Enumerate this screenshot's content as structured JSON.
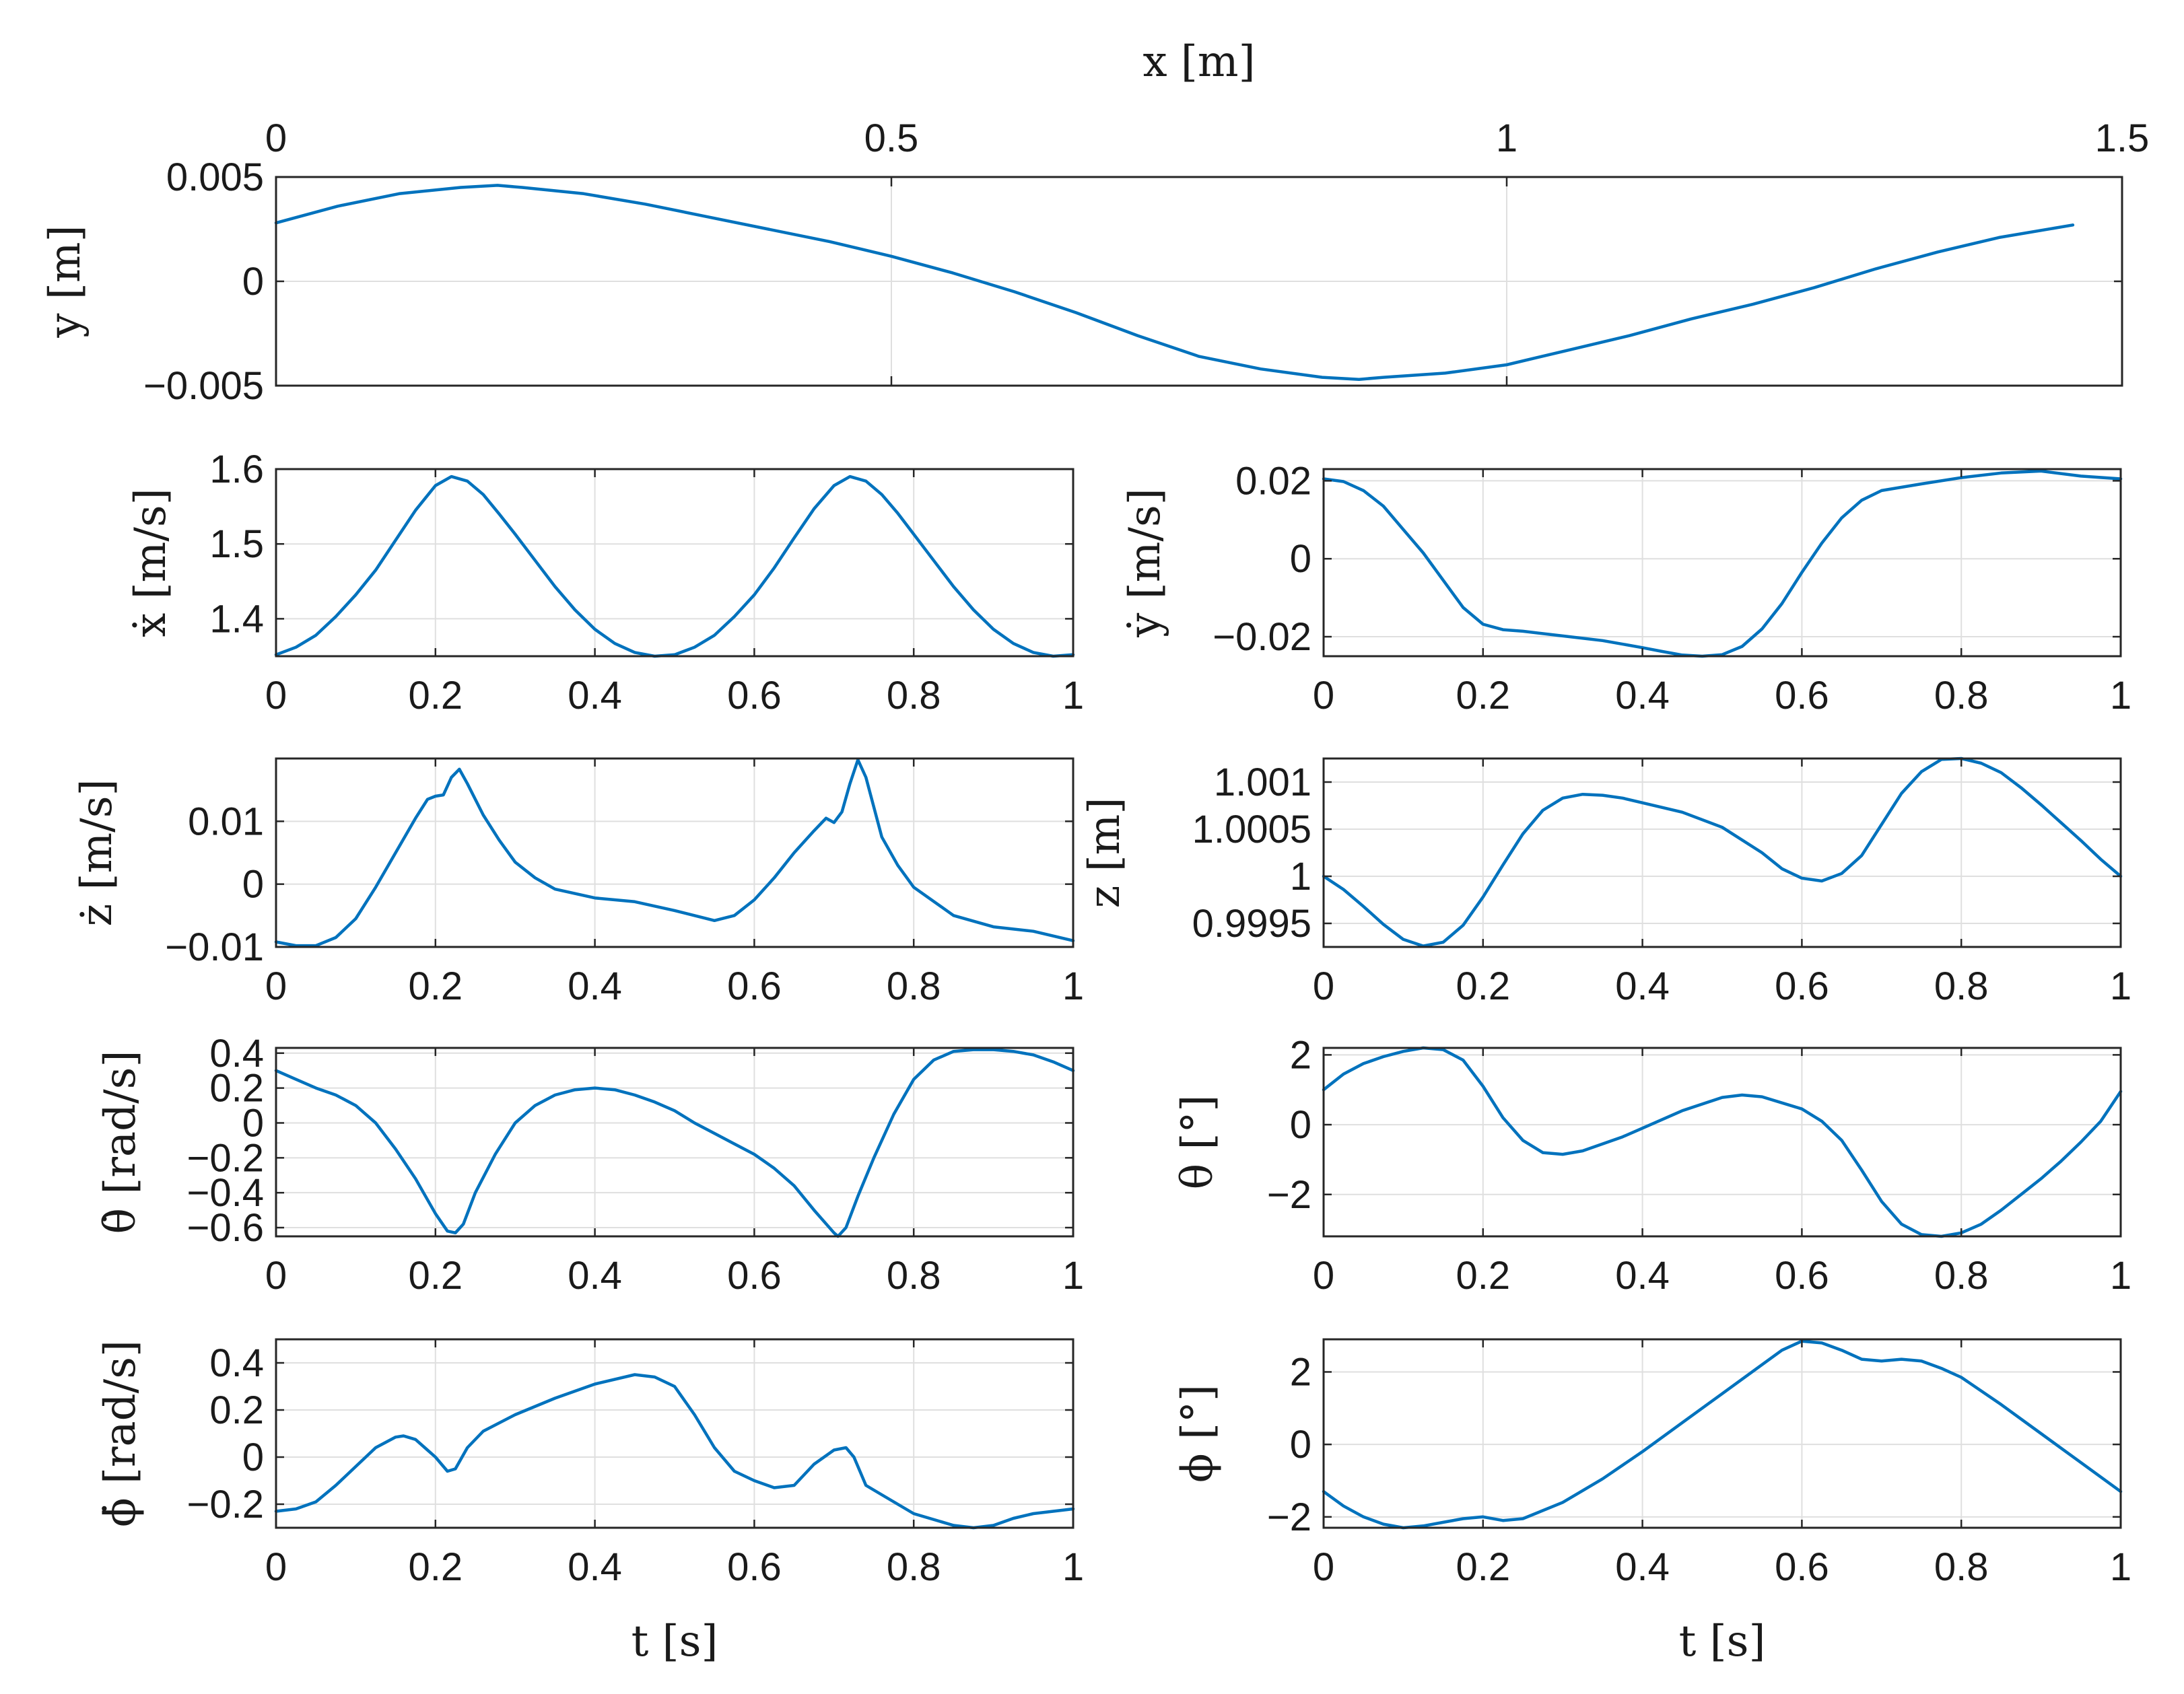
{
  "chart_data": [
    {
      "type": "line",
      "xlabel": "x [m]",
      "ylabel": "y [m]",
      "xlim": [
        0,
        1.5
      ],
      "ylim": [
        -0.005,
        0.005
      ],
      "xticks": [
        0,
        0.5,
        1,
        1.5
      ],
      "xtick_labels": [
        "0",
        "0.5",
        "1",
        "1.5"
      ],
      "yticks": [
        -0.005,
        0,
        0.005
      ],
      "ytick_labels": [
        "−0.005",
        "0",
        "0.005"
      ],
      "x_axis_position": "top",
      "grid": true,
      "x": [
        0,
        0.05,
        0.1,
        0.15,
        0.18,
        0.2,
        0.25,
        0.3,
        0.35,
        0.4,
        0.45,
        0.5,
        0.55,
        0.6,
        0.65,
        0.7,
        0.75,
        0.8,
        0.85,
        0.88,
        0.9,
        0.95,
        1.0,
        1.05,
        1.1,
        1.15,
        1.2,
        1.25,
        1.3,
        1.35,
        1.4,
        1.46
      ],
      "y": [
        0.0028,
        0.0036,
        0.0042,
        0.0045,
        0.0046,
        0.0045,
        0.0042,
        0.0037,
        0.0031,
        0.0025,
        0.0019,
        0.0012,
        0.0004,
        -0.0005,
        -0.0015,
        -0.0026,
        -0.0036,
        -0.0042,
        -0.0046,
        -0.0047,
        -0.0046,
        -0.0044,
        -0.004,
        -0.0033,
        -0.0026,
        -0.0018,
        -0.0011,
        -0.0003,
        0.0006,
        0.0014,
        0.0021,
        0.0027
      ]
    },
    {
      "type": "line",
      "xlabel": "",
      "ylabel": "ẋ [m/s]",
      "xlim": [
        0,
        1
      ],
      "ylim": [
        1.35,
        1.6
      ],
      "xticks": [
        0,
        0.2,
        0.4,
        0.6,
        0.8,
        1
      ],
      "xtick_labels": [
        "0",
        "0.2",
        "0.4",
        "0.6",
        "0.8",
        "1"
      ],
      "yticks": [
        1.4,
        1.5,
        1.6
      ],
      "ytick_labels": [
        "1.4",
        "1.5",
        "1.6"
      ],
      "grid": true,
      "x": [
        0,
        0.025,
        0.05,
        0.075,
        0.1,
        0.125,
        0.15,
        0.175,
        0.2,
        0.22,
        0.24,
        0.26,
        0.28,
        0.3,
        0.325,
        0.35,
        0.375,
        0.4,
        0.425,
        0.45,
        0.475,
        0.5,
        0.525,
        0.55,
        0.575,
        0.6,
        0.625,
        0.65,
        0.675,
        0.7,
        0.72,
        0.74,
        0.76,
        0.78,
        0.8,
        0.825,
        0.85,
        0.875,
        0.9,
        0.925,
        0.95,
        0.975,
        1.0
      ],
      "y": [
        1.352,
        1.362,
        1.378,
        1.403,
        1.432,
        1.465,
        1.505,
        1.545,
        1.578,
        1.59,
        1.584,
        1.566,
        1.54,
        1.513,
        1.478,
        1.443,
        1.412,
        1.386,
        1.367,
        1.355,
        1.35,
        1.352,
        1.362,
        1.378,
        1.403,
        1.432,
        1.468,
        1.508,
        1.547,
        1.578,
        1.59,
        1.584,
        1.566,
        1.541,
        1.513,
        1.478,
        1.443,
        1.412,
        1.386,
        1.367,
        1.355,
        1.35,
        1.352
      ]
    },
    {
      "type": "line",
      "xlabel": "",
      "ylabel": "ẏ [m/s]",
      "xlim": [
        0,
        1
      ],
      "ylim": [
        -0.025,
        0.023
      ],
      "xticks": [
        0,
        0.2,
        0.4,
        0.6,
        0.8,
        1
      ],
      "xtick_labels": [
        "0",
        "0.2",
        "0.4",
        "0.6",
        "0.8",
        "1"
      ],
      "yticks": [
        -0.02,
        0,
        0.02
      ],
      "ytick_labels": [
        "−0.02",
        "0",
        "0.02"
      ],
      "grid": true,
      "x": [
        0,
        0.025,
        0.05,
        0.075,
        0.1,
        0.125,
        0.15,
        0.175,
        0.2,
        0.225,
        0.25,
        0.3,
        0.35,
        0.4,
        0.425,
        0.45,
        0.475,
        0.5,
        0.525,
        0.55,
        0.575,
        0.6,
        0.625,
        0.65,
        0.675,
        0.7,
        0.75,
        0.8,
        0.85,
        0.9,
        0.95,
        1.0
      ],
      "y": [
        0.0205,
        0.0198,
        0.0175,
        0.0135,
        0.0075,
        0.0015,
        -0.0055,
        -0.0125,
        -0.0168,
        -0.0182,
        -0.0186,
        -0.0198,
        -0.021,
        -0.0228,
        -0.0238,
        -0.0247,
        -0.025,
        -0.0246,
        -0.0225,
        -0.018,
        -0.0115,
        -0.0035,
        0.004,
        0.0105,
        0.015,
        0.0175,
        0.0192,
        0.0208,
        0.022,
        0.0225,
        0.0212,
        0.0205
      ]
    },
    {
      "type": "line",
      "xlabel": "",
      "ylabel": "ż [m/s]",
      "xlim": [
        0,
        1
      ],
      "ylim": [
        -0.01,
        0.02
      ],
      "xticks": [
        0,
        0.2,
        0.4,
        0.6,
        0.8,
        1
      ],
      "xtick_labels": [
        "0",
        "0.2",
        "0.4",
        "0.6",
        "0.8",
        "1"
      ],
      "yticks": [
        -0.01,
        0,
        0.01
      ],
      "ytick_labels": [
        "−0.01",
        "0",
        "0.01"
      ],
      "grid": true,
      "x": [
        0,
        0.025,
        0.05,
        0.075,
        0.1,
        0.125,
        0.15,
        0.175,
        0.19,
        0.2,
        0.21,
        0.22,
        0.23,
        0.24,
        0.26,
        0.28,
        0.3,
        0.325,
        0.35,
        0.4,
        0.45,
        0.5,
        0.55,
        0.575,
        0.6,
        0.625,
        0.65,
        0.675,
        0.69,
        0.7,
        0.71,
        0.72,
        0.73,
        0.74,
        0.76,
        0.78,
        0.8,
        0.85,
        0.9,
        0.95,
        1.0
      ],
      "y": [
        -0.0092,
        -0.0098,
        -0.0098,
        -0.0085,
        -0.0055,
        -0.0005,
        0.005,
        0.0105,
        0.0135,
        0.014,
        0.0142,
        0.017,
        0.0183,
        0.016,
        0.011,
        0.007,
        0.0035,
        0.001,
        -0.0008,
        -0.0022,
        -0.0028,
        -0.0042,
        -0.0058,
        -0.005,
        -0.0025,
        0.001,
        0.005,
        0.0085,
        0.0105,
        0.0098,
        0.0115,
        0.016,
        0.0198,
        0.017,
        0.0075,
        0.003,
        -0.0005,
        -0.005,
        -0.0068,
        -0.0075,
        -0.009
      ]
    },
    {
      "type": "line",
      "xlabel": "",
      "ylabel": "z [m]",
      "xlim": [
        0,
        1
      ],
      "ylim": [
        0.99925,
        1.00125
      ],
      "xticks": [
        0,
        0.2,
        0.4,
        0.6,
        0.8,
        1
      ],
      "xtick_labels": [
        "0",
        "0.2",
        "0.4",
        "0.6",
        "0.8",
        "1"
      ],
      "yticks": [
        0.9995,
        1,
        1.0005,
        1.001
      ],
      "ytick_labels": [
        "0.9995",
        "1",
        "1.0005",
        "1.001"
      ],
      "grid": true,
      "x": [
        0,
        0.025,
        0.05,
        0.075,
        0.1,
        0.125,
        0.15,
        0.175,
        0.2,
        0.225,
        0.25,
        0.275,
        0.3,
        0.325,
        0.35,
        0.375,
        0.4,
        0.45,
        0.5,
        0.55,
        0.575,
        0.6,
        0.625,
        0.65,
        0.675,
        0.7,
        0.725,
        0.75,
        0.775,
        0.8,
        0.825,
        0.85,
        0.875,
        0.9,
        0.925,
        0.95,
        0.975,
        1.0
      ],
      "y": [
        1.0,
        0.99986,
        0.99968,
        0.99949,
        0.99933,
        0.99926,
        0.9993,
        0.99948,
        0.99978,
        1.00012,
        1.00045,
        1.0007,
        1.00083,
        1.00087,
        1.00086,
        1.00083,
        1.00078,
        1.00068,
        1.00052,
        1.00025,
        1.00008,
        0.99998,
        0.99995,
        1.00003,
        1.00022,
        1.00055,
        1.00088,
        1.00111,
        1.00124,
        1.00125,
        1.0012,
        1.0011,
        1.00094,
        1.00076,
        1.00057,
        1.00038,
        1.00018,
        1.0
      ]
    },
    {
      "type": "line",
      "xlabel": "",
      "ylabel": "θ̇ [rad/s]",
      "xlim": [
        0,
        1
      ],
      "ylim": [
        -0.65,
        0.43
      ],
      "xticks": [
        0,
        0.2,
        0.4,
        0.6,
        0.8,
        1
      ],
      "xtick_labels": [
        "0",
        "0.2",
        "0.4",
        "0.6",
        "0.8",
        "1"
      ],
      "yticks": [
        -0.6,
        -0.4,
        -0.2,
        0,
        0.2,
        0.4
      ],
      "ytick_labels": [
        "−0.6",
        "−0.4",
        "−0.2",
        "0",
        "0.2",
        "0.4"
      ],
      "grid": true,
      "x": [
        0,
        0.025,
        0.05,
        0.075,
        0.1,
        0.125,
        0.15,
        0.175,
        0.2,
        0.215,
        0.225,
        0.235,
        0.25,
        0.275,
        0.3,
        0.325,
        0.35,
        0.375,
        0.4,
        0.425,
        0.45,
        0.475,
        0.5,
        0.525,
        0.55,
        0.575,
        0.6,
        0.625,
        0.65,
        0.675,
        0.7,
        0.705,
        0.715,
        0.73,
        0.75,
        0.775,
        0.8,
        0.825,
        0.85,
        0.875,
        0.9,
        0.925,
        0.95,
        0.975,
        1.0
      ],
      "y": [
        0.3,
        0.25,
        0.2,
        0.16,
        0.1,
        0.0,
        -0.15,
        -0.32,
        -0.52,
        -0.62,
        -0.63,
        -0.58,
        -0.4,
        -0.18,
        0.0,
        0.1,
        0.16,
        0.19,
        0.2,
        0.19,
        0.16,
        0.12,
        0.07,
        0.0,
        -0.06,
        -0.12,
        -0.18,
        -0.26,
        -0.36,
        -0.5,
        -0.63,
        -0.65,
        -0.6,
        -0.42,
        -0.2,
        0.05,
        0.25,
        0.36,
        0.41,
        0.42,
        0.42,
        0.41,
        0.39,
        0.35,
        0.3
      ]
    },
    {
      "type": "line",
      "xlabel": "",
      "ylabel": "θ [°]",
      "xlim": [
        0,
        1
      ],
      "ylim": [
        -3.2,
        2.2
      ],
      "xticks": [
        0,
        0.2,
        0.4,
        0.6,
        0.8,
        1
      ],
      "xtick_labels": [
        "0",
        "0.2",
        "0.4",
        "0.6",
        "0.8",
        "1"
      ],
      "yticks": [
        -2,
        0,
        2
      ],
      "ytick_labels": [
        "−2",
        "0",
        "2"
      ],
      "grid": true,
      "x": [
        0,
        0.025,
        0.05,
        0.075,
        0.1,
        0.125,
        0.15,
        0.175,
        0.2,
        0.225,
        0.25,
        0.275,
        0.3,
        0.325,
        0.35,
        0.375,
        0.4,
        0.45,
        0.5,
        0.525,
        0.55,
        0.6,
        0.625,
        0.65,
        0.675,
        0.7,
        0.725,
        0.75,
        0.775,
        0.8,
        0.825,
        0.85,
        0.875,
        0.9,
        0.925,
        0.95,
        0.975,
        1.0
      ],
      "y": [
        1.0,
        1.45,
        1.75,
        1.95,
        2.1,
        2.2,
        2.15,
        1.85,
        1.1,
        0.2,
        -0.45,
        -0.8,
        -0.85,
        -0.75,
        -0.55,
        -0.35,
        -0.1,
        0.4,
        0.78,
        0.85,
        0.8,
        0.45,
        0.1,
        -0.45,
        -1.3,
        -2.2,
        -2.85,
        -3.15,
        -3.2,
        -3.1,
        -2.85,
        -2.45,
        -2.0,
        -1.55,
        -1.05,
        -0.5,
        0.1,
        0.95
      ]
    },
    {
      "type": "line",
      "xlabel": "t [s]",
      "ylabel": "ϕ̇ [rad/s]",
      "xlim": [
        0,
        1
      ],
      "ylim": [
        -0.3,
        0.5
      ],
      "xticks": [
        0,
        0.2,
        0.4,
        0.6,
        0.8,
        1
      ],
      "xtick_labels": [
        "0",
        "0.2",
        "0.4",
        "0.6",
        "0.8",
        "1"
      ],
      "yticks": [
        -0.2,
        0,
        0.2,
        0.4
      ],
      "ytick_labels": [
        "−0.2",
        "0",
        "0.2",
        "0.4"
      ],
      "grid": true,
      "x": [
        0,
        0.025,
        0.05,
        0.075,
        0.1,
        0.125,
        0.15,
        0.16,
        0.175,
        0.2,
        0.215,
        0.225,
        0.24,
        0.26,
        0.3,
        0.35,
        0.4,
        0.45,
        0.475,
        0.5,
        0.525,
        0.55,
        0.575,
        0.6,
        0.625,
        0.65,
        0.675,
        0.7,
        0.715,
        0.725,
        0.74,
        0.76,
        0.8,
        0.85,
        0.875,
        0.9,
        0.925,
        0.95,
        0.975,
        1.0
      ],
      "y": [
        -0.23,
        -0.22,
        -0.19,
        -0.12,
        -0.04,
        0.04,
        0.085,
        0.09,
        0.075,
        0.0,
        -0.06,
        -0.05,
        0.04,
        0.11,
        0.18,
        0.25,
        0.31,
        0.35,
        0.34,
        0.3,
        0.18,
        0.04,
        -0.06,
        -0.1,
        -0.13,
        -0.12,
        -0.03,
        0.03,
        0.04,
        0.0,
        -0.12,
        -0.16,
        -0.24,
        -0.29,
        -0.3,
        -0.29,
        -0.26,
        -0.24,
        -0.23,
        -0.22
      ]
    },
    {
      "type": "line",
      "xlabel": "t [s]",
      "ylabel": "ϕ [°]",
      "xlim": [
        0,
        1
      ],
      "ylim": [
        -2.3,
        2.9
      ],
      "xticks": [
        0,
        0.2,
        0.4,
        0.6,
        0.8,
        1
      ],
      "xtick_labels": [
        "0",
        "0.2",
        "0.4",
        "0.6",
        "0.8",
        "1"
      ],
      "yticks": [
        -2,
        0,
        2
      ],
      "ytick_labels": [
        "−2",
        "0",
        "2"
      ],
      "grid": true,
      "x": [
        0,
        0.025,
        0.05,
        0.075,
        0.1,
        0.125,
        0.15,
        0.175,
        0.2,
        0.225,
        0.25,
        0.3,
        0.35,
        0.4,
        0.45,
        0.5,
        0.55,
        0.575,
        0.6,
        0.625,
        0.65,
        0.675,
        0.7,
        0.725,
        0.75,
        0.775,
        0.8,
        0.85,
        0.9,
        0.95,
        1.0
      ],
      "y": [
        -1.3,
        -1.7,
        -2.0,
        -2.2,
        -2.3,
        -2.25,
        -2.15,
        -2.05,
        -2.0,
        -2.1,
        -2.05,
        -1.6,
        -0.95,
        -0.2,
        0.6,
        1.4,
        2.2,
        2.6,
        2.85,
        2.8,
        2.6,
        2.35,
        2.3,
        2.35,
        2.3,
        2.1,
        1.85,
        1.1,
        0.3,
        -0.5,
        -1.3
      ]
    }
  ]
}
